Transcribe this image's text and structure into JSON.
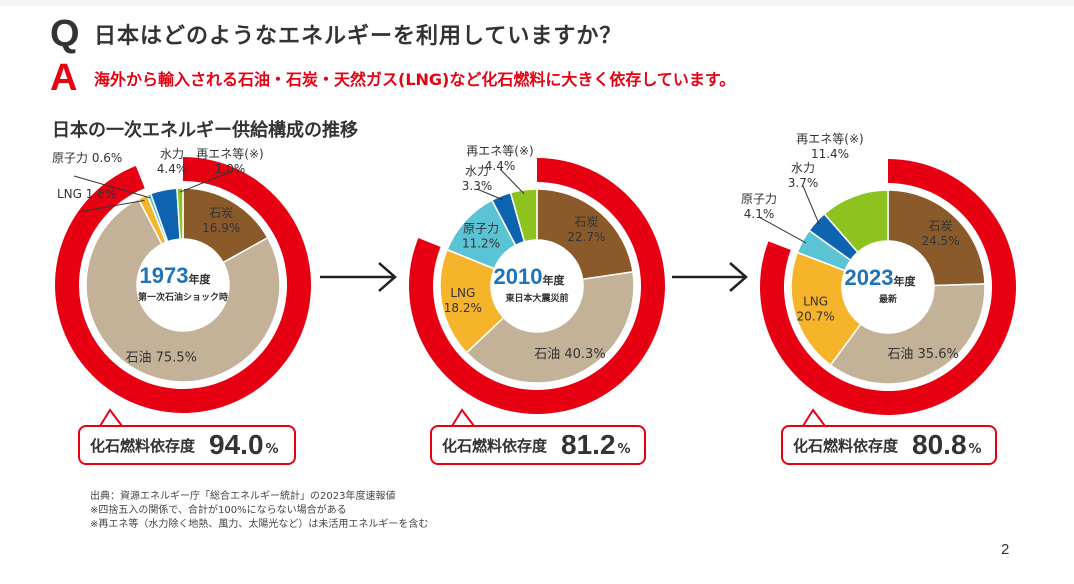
{
  "question": {
    "letter": "Q",
    "text": "日本はどのようなエネルギーを利用していますか？"
  },
  "answer": {
    "letter": "A",
    "text": "海外から輸入される石油・石炭・天然ガス(LNG)など化石燃料に大きく依存しています。"
  },
  "section_title": "日本の一次エネルギー供給構成の推移",
  "colors": {
    "fossil_ring": "#e60012",
    "coal": "#8b5a2b",
    "oil": "#c3b198",
    "lng": "#f5b42a",
    "nuclear": "#5bc4d4",
    "hydro": "#0d63b0",
    "renewable": "#8dc21f",
    "year_text": "#1f73b7"
  },
  "dependency_label": "化石燃料依存度",
  "dependency_unit": "%",
  "chart_data": [
    {
      "type": "pie",
      "year": "1973",
      "year_suffix": "年度",
      "subtitle": "第一次石油ショック時",
      "fossil_dependency": "94.0",
      "slices": [
        {
          "name": "石炭",
          "value": 16.9,
          "color_key": "coal"
        },
        {
          "name": "石油",
          "value": 75.5,
          "color_key": "oil"
        },
        {
          "name": "LNG",
          "value": 1.6,
          "color_key": "lng"
        },
        {
          "name": "原子力",
          "value": 0.6,
          "color_key": "nuclear"
        },
        {
          "name": "水力",
          "value": 4.4,
          "color_key": "hydro"
        },
        {
          "name": "再エネ等(※)",
          "value": 1.0,
          "color_key": "renewable"
        }
      ]
    },
    {
      "type": "pie",
      "year": "2010",
      "year_suffix": "年度",
      "subtitle": "東日本大震災前",
      "fossil_dependency": "81.2",
      "slices": [
        {
          "name": "石炭",
          "value": 22.7,
          "color_key": "coal"
        },
        {
          "name": "石油",
          "value": 40.3,
          "color_key": "oil"
        },
        {
          "name": "LNG",
          "value": 18.2,
          "color_key": "lng"
        },
        {
          "name": "原子力",
          "value": 11.2,
          "color_key": "nuclear"
        },
        {
          "name": "水力",
          "value": 3.3,
          "color_key": "hydro"
        },
        {
          "name": "再エネ等(※)",
          "value": 4.4,
          "color_key": "renewable"
        }
      ]
    },
    {
      "type": "pie",
      "year": "2023",
      "year_suffix": "年度",
      "subtitle": "最新",
      "fossil_dependency": "80.8",
      "slices": [
        {
          "name": "石炭",
          "value": 24.5,
          "color_key": "coal"
        },
        {
          "name": "石油",
          "value": 35.6,
          "color_key": "oil"
        },
        {
          "name": "LNG",
          "value": 20.7,
          "color_key": "lng"
        },
        {
          "name": "原子力",
          "value": 4.1,
          "color_key": "nuclear"
        },
        {
          "name": "水力",
          "value": 3.7,
          "color_key": "hydro"
        },
        {
          "name": "再エネ等(※)",
          "value": 11.4,
          "color_key": "renewable"
        }
      ]
    }
  ],
  "notes": [
    "出典：資源エネルギー庁「総合エネルギー統計」の2023年度速報値",
    "※四捨五入の関係で、合計が100%にならない場合がある",
    "※再エネ等（水力除く地熱、風力、太陽光など）は未活用エネルギーを含む"
  ],
  "page_number": "2"
}
